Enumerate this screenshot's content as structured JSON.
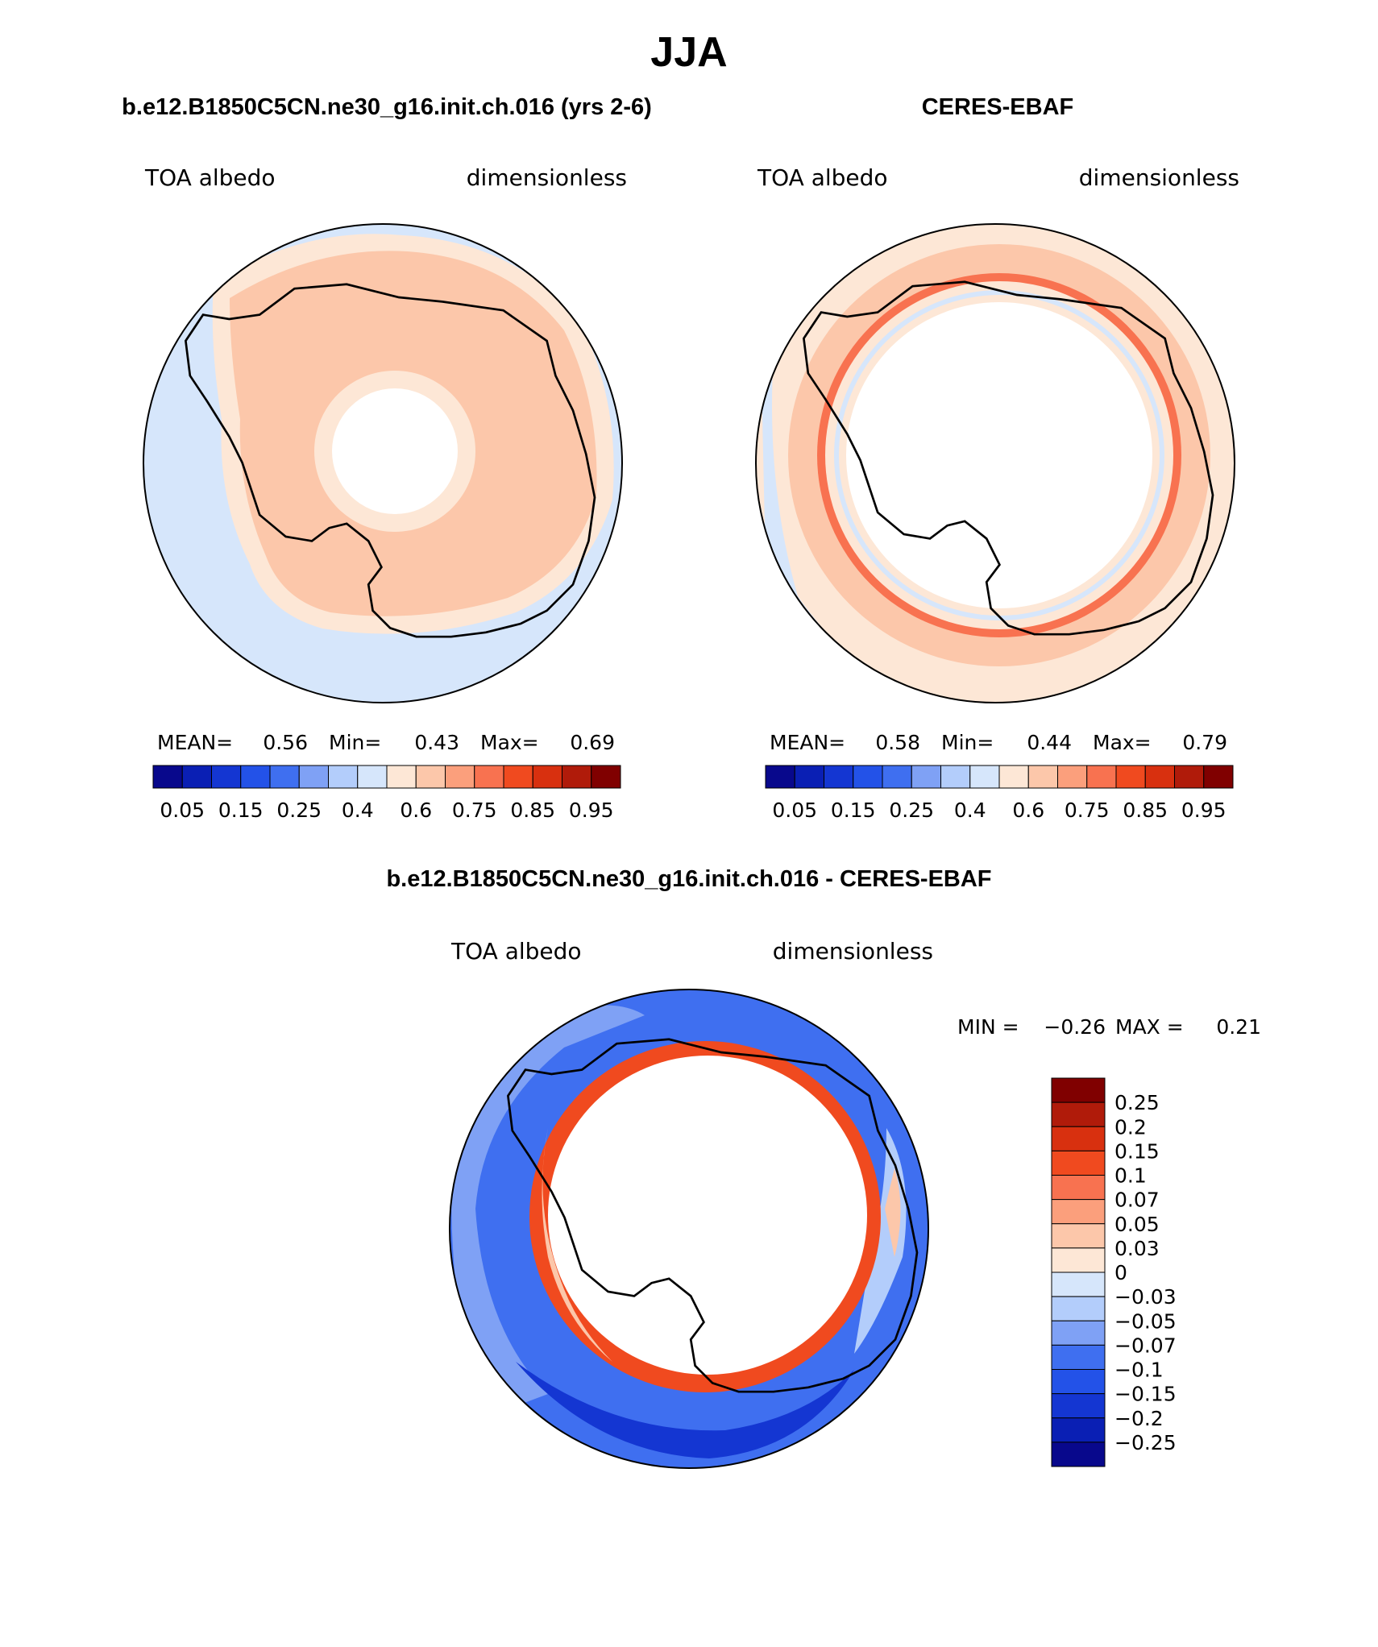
{
  "figure_title": "JJA",
  "panels": [
    {
      "title": "b.e12.B1850C5CN.ne30_g16.init.ch.016 (yrs 2-6)",
      "left_label": "TOA albedo",
      "right_label": "dimensionless",
      "stats": {
        "mean_label": "MEAN=",
        "mean": "0.56",
        "min_label": "Min=",
        "min": "0.43",
        "max_label": "Max=",
        "max": "0.69"
      }
    },
    {
      "title": "CERES-EBAF",
      "left_label": "TOA albedo",
      "right_label": "dimensionless",
      "stats": {
        "mean_label": "MEAN=",
        "mean": "0.58",
        "min_label": "Min=",
        "min": "0.44",
        "max_label": "Max=",
        "max": "0.79"
      }
    },
    {
      "title": "b.e12.B1850C5CN.ne30_g16.init.ch.016 - CERES-EBAF",
      "left_label": "TOA albedo",
      "right_label": "dimensionless",
      "stats": {
        "min_label": "MIN =",
        "min": "−0.26",
        "max_label": "MAX =",
        "max": "0.21"
      }
    }
  ],
  "colorbar_abs": {
    "colors": [
      "#08088c",
      "#0a1fb4",
      "#1436d2",
      "#2352e8",
      "#3f6ff0",
      "#7fa1f5",
      "#b3cdfb",
      "#d6e6fb",
      "#fde7d6",
      "#fcc7aa",
      "#fb9f7c",
      "#f87250",
      "#f04a1f",
      "#d8300f",
      "#b01b0a",
      "#800000"
    ],
    "labels": [
      "0.05",
      "0.15",
      "0.25",
      "0.4",
      "0.6",
      "0.75",
      "0.85",
      "0.95"
    ]
  },
  "colorbar_diff": {
    "colors_top_to_bottom": [
      "#800000",
      "#b01b0a",
      "#d8300f",
      "#f04a1f",
      "#f87250",
      "#fb9f7c",
      "#fcc7aa",
      "#fde7d6",
      "#d6e6fb",
      "#b3cdfb",
      "#7fa1f5",
      "#3f6ff0",
      "#2352e8",
      "#1436d2",
      "#0a1fb4",
      "#08088c"
    ],
    "labels": [
      "0.25",
      "0.2",
      "0.15",
      "0.1",
      "0.07",
      "0.05",
      "0.03",
      "0",
      "−0.03",
      "−0.05",
      "−0.07",
      "−0.1",
      "−0.15",
      "−0.2",
      "−0.25"
    ]
  },
  "colors": {
    "ocean_low": "#d6e6fb",
    "mid": "#fde7d6",
    "high": "#fcc7aa",
    "diff_pos": "#f04a1f",
    "diff_neg": "#2352e8",
    "diff_neg_strong": "#1436d2"
  }
}
